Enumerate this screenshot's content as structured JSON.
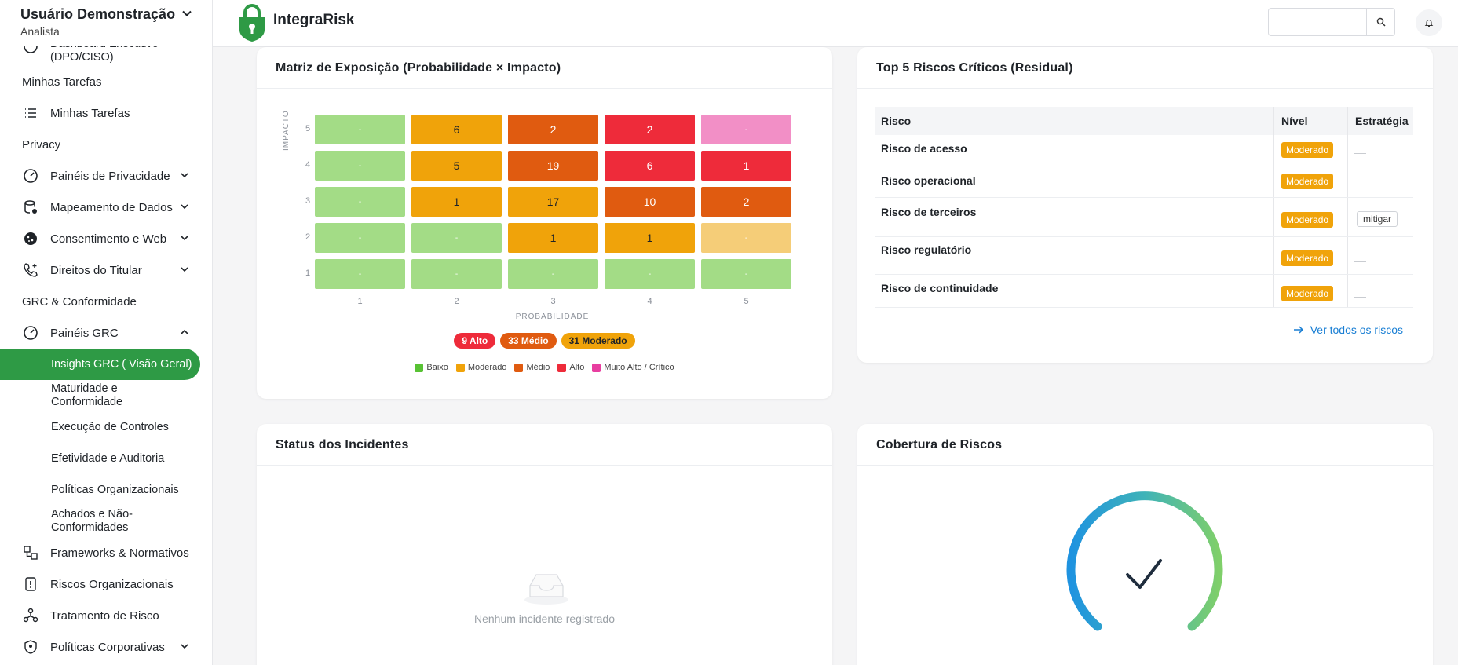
{
  "user": {
    "name": "Usuário Demonstração",
    "role": "Analista"
  },
  "sidebar": {
    "top_item": "Dashboard Executivo (DPO/CISO)",
    "section_tasks": "Minhas Tarefas",
    "tasks_item": "Minhas Tarefas",
    "section_privacy": "Privacy",
    "privacy_items": [
      {
        "label": "Painéis de Privacidade",
        "icon": "gauge-icon"
      },
      {
        "label": "Mapeamento de Dados",
        "icon": "database-icon"
      },
      {
        "label": "Consentimento e Web",
        "icon": "cookie-icon"
      },
      {
        "label": "Direitos do Titular",
        "icon": "phone-icon"
      }
    ],
    "section_grc": "GRC & Conformidade",
    "grc_panels": "Painéis GRC",
    "grc_sub": [
      "Insights GRC ( Visão Geral)",
      "Maturidade e Conformidade",
      "Execução de Controles",
      "Efetividade e Auditoria",
      "Políticas Organizacionais",
      "Achados e Não-Conformidades"
    ],
    "bottom_items": [
      {
        "label": "Frameworks & Normativos",
        "icon": "frameworks-icon"
      },
      {
        "label": "Riscos Organizacionais",
        "icon": "risk-doc-icon"
      },
      {
        "label": "Tratamento de Risco",
        "icon": "share-icon"
      },
      {
        "label": "Políticas Corporativas",
        "icon": "shield-icon"
      }
    ]
  },
  "header": {
    "brand": "IntegraRisk",
    "search_placeholder": ""
  },
  "matrix": {
    "title": "Matriz de Exposição (Probabilidade × Impacto)",
    "y_axis_title": "IMPACTO",
    "x_axis_title": "PROBABILIDADE",
    "x_ticks": [
      "1",
      "2",
      "3",
      "4",
      "5"
    ],
    "y_ticks": [
      "5",
      "4",
      "3",
      "2",
      "1"
    ],
    "rows": [
      [
        "-",
        "6",
        "2",
        "2",
        "-"
      ],
      [
        "-",
        "5",
        "19",
        "6",
        "1"
      ],
      [
        "-",
        "1",
        "17",
        "10",
        "2"
      ],
      [
        "-",
        "-",
        "1",
        "1",
        "-"
      ],
      [
        "-",
        "-",
        "-",
        "-",
        "-"
      ]
    ],
    "row_colors": [
      [
        "#a3dc86",
        "#f0a30a",
        "#e05b10",
        "#ee2b3a",
        "#f28fc6"
      ],
      [
        "#a3dc86",
        "#f0a30a",
        "#e05b10",
        "#ee2b3a",
        "#ee2b3a"
      ],
      [
        "#a3dc86",
        "#f0a30a",
        "#f0a30a",
        "#e05b10",
        "#e05b10"
      ],
      [
        "#a3dc86",
        "#a3dc86",
        "#f0a30a",
        "#f0a30a",
        "#f5cd78"
      ],
      [
        "#a3dc86",
        "#a3dc86",
        "#a3dc86",
        "#a3dc86",
        "#a3dc86"
      ]
    ],
    "summary": [
      {
        "label": "9 Alto",
        "color": "#ee2b3a"
      },
      {
        "label": "33 Médio",
        "color": "#e05b10"
      },
      {
        "label": "31 Moderado",
        "color": "#f0a30a"
      }
    ],
    "legend": [
      {
        "label": "Baixo",
        "color": "#58c234"
      },
      {
        "label": "Moderado",
        "color": "#f0a30a"
      },
      {
        "label": "Médio",
        "color": "#e05b10"
      },
      {
        "label": "Alto",
        "color": "#ee2b3a"
      },
      {
        "label": "Muito Alto / Crítico",
        "color": "#e83ea0"
      }
    ]
  },
  "top5": {
    "title": "Top 5 Riscos Críticos (Residual)",
    "col_risk": "Risco",
    "col_level": "Nível",
    "col_strategy": "Estratégia",
    "rows": [
      {
        "name": "Risco de acesso",
        "level": "Moderado",
        "strategy": ""
      },
      {
        "name": "Risco operacional",
        "level": "Moderado",
        "strategy": ""
      },
      {
        "name": "Risco de terceiros",
        "level": "Moderado",
        "strategy": "mitigar"
      },
      {
        "name": "Risco regulatório",
        "level": "Moderado",
        "strategy": ""
      },
      {
        "name": "Risco de continuidade",
        "level": "Moderado",
        "strategy": ""
      }
    ],
    "view_all": "Ver todos os riscos"
  },
  "incidents": {
    "title": "Status dos Incidentes",
    "empty": "Nenhum incidente registrado"
  },
  "coverage": {
    "title": "Cobertura de Riscos"
  },
  "colors": {
    "accent_green": "#2e9a45",
    "link_blue": "#1a7fd4"
  }
}
